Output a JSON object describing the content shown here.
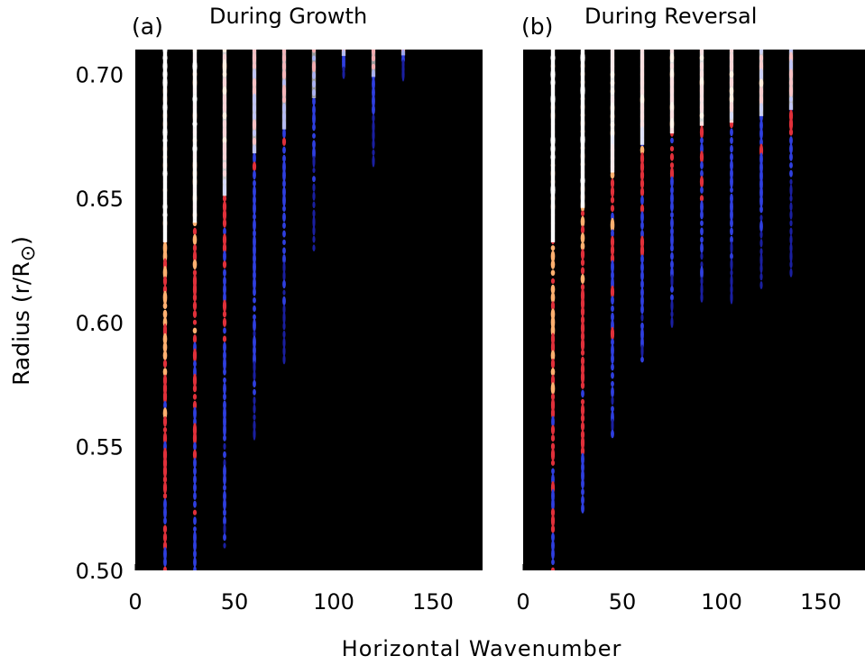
{
  "figure": {
    "xlabel": "Horizontal Wavenumber",
    "ylabel_main": "Radius (r/R",
    "ylabel_symbol": "⊙",
    "ylabel_close": ")"
  },
  "colors": {
    "background": "#000000",
    "strong": "#ffffff",
    "mid": "#ffb070",
    "red": "#e0303a",
    "blue": "#2f3fe0",
    "faint_blue": "#1a1fa0"
  },
  "chart_data": [
    {
      "type": "heatmap",
      "panel_label": "(a)",
      "title": "During Growth",
      "xlabel": "Horizontal Wavenumber",
      "ylabel": "Radius (r/R⊙)",
      "xlim": [
        0,
        175
      ],
      "ylim": [
        0.5,
        0.71
      ],
      "x_ticks": [
        0,
        50,
        100,
        150
      ],
      "y_ticks": [
        0.5,
        0.55,
        0.6,
        0.65,
        0.7
      ],
      "y_tick_labels": [
        "0.50",
        "0.55",
        "0.60",
        "0.65",
        "0.70"
      ],
      "colormap": "black-blue-red-white",
      "bands": [
        {
          "wavenumber": 15,
          "r_bottom": 0.5,
          "r_top": 0.71,
          "peak": 1.0
        },
        {
          "wavenumber": 30,
          "r_bottom": 0.5,
          "r_top": 0.71,
          "peak": 0.85
        },
        {
          "wavenumber": 45,
          "r_bottom": 0.51,
          "r_top": 0.71,
          "peak": 0.7
        },
        {
          "wavenumber": 60,
          "r_bottom": 0.555,
          "r_top": 0.71,
          "peak": 0.6
        },
        {
          "wavenumber": 75,
          "r_bottom": 0.585,
          "r_top": 0.71,
          "peak": 0.55
        },
        {
          "wavenumber": 90,
          "r_bottom": 0.63,
          "r_top": 0.71,
          "peak": 0.5
        },
        {
          "wavenumber": 105,
          "r_bottom": 0.7,
          "r_top": 0.71,
          "peak": 0.55
        },
        {
          "wavenumber": 120,
          "r_bottom": 0.665,
          "r_top": 0.71,
          "peak": 0.5
        },
        {
          "wavenumber": 135,
          "r_bottom": 0.7,
          "r_top": 0.71,
          "peak": 0.45
        }
      ]
    },
    {
      "type": "heatmap",
      "panel_label": "(b)",
      "title": "During Reversal",
      "xlabel": "Horizontal Wavenumber",
      "ylabel": "",
      "xlim": [
        0,
        175
      ],
      "ylim": [
        0.5,
        0.71
      ],
      "x_ticks": [
        0,
        50,
        100,
        150
      ],
      "y_ticks": [],
      "y_tick_labels": [],
      "colormap": "black-blue-red-white",
      "bands": [
        {
          "wavenumber": 15,
          "r_bottom": 0.5,
          "r_top": 0.71,
          "peak": 1.0
        },
        {
          "wavenumber": 30,
          "r_bottom": 0.525,
          "r_top": 0.71,
          "peak": 0.9
        },
        {
          "wavenumber": 45,
          "r_bottom": 0.555,
          "r_top": 0.71,
          "peak": 0.8
        },
        {
          "wavenumber": 60,
          "r_bottom": 0.585,
          "r_top": 0.71,
          "peak": 0.75
        },
        {
          "wavenumber": 75,
          "r_bottom": 0.6,
          "r_top": 0.71,
          "peak": 0.75
        },
        {
          "wavenumber": 90,
          "r_bottom": 0.61,
          "r_top": 0.71,
          "peak": 0.75
        },
        {
          "wavenumber": 105,
          "r_bottom": 0.61,
          "r_top": 0.71,
          "peak": 0.7
        },
        {
          "wavenumber": 120,
          "r_bottom": 0.615,
          "r_top": 0.71,
          "peak": 0.65
        },
        {
          "wavenumber": 135,
          "r_bottom": 0.62,
          "r_top": 0.71,
          "peak": 0.6
        }
      ]
    }
  ]
}
